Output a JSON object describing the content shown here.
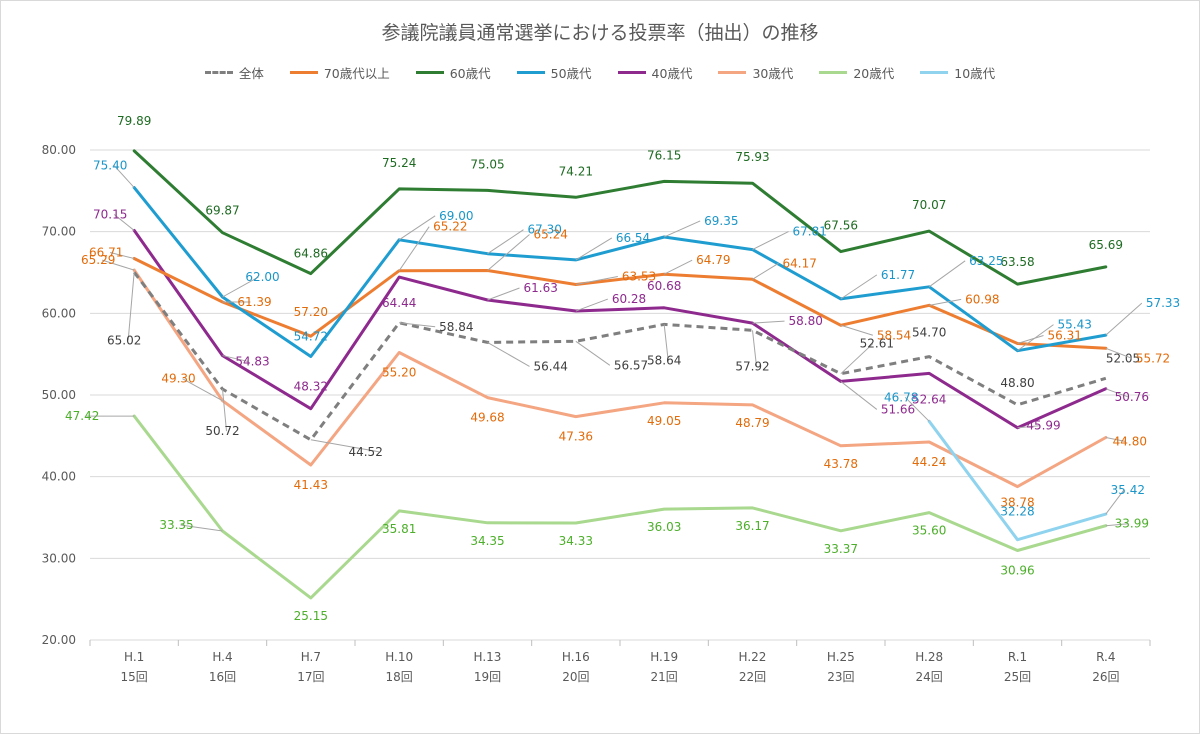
{
  "chart_data": {
    "type": "line",
    "title": "参議院議員通常選挙における投票率（抽出）の推移",
    "xlabel": "",
    "ylabel": "",
    "ylim": [
      20,
      80
    ],
    "yticks": [
      "20.00",
      "30.00",
      "40.00",
      "50.00",
      "60.00",
      "70.00",
      "80.00"
    ],
    "grid": "horizontal",
    "legend_position": "top",
    "categories": [
      "H.1",
      "H.4",
      "H.7",
      "H.10",
      "H.13",
      "H.16",
      "H.19",
      "H.22",
      "H.25",
      "H.28",
      "R.1",
      "R.4"
    ],
    "categories_sub": [
      "15回",
      "16回",
      "17回",
      "18回",
      "19回",
      "20回",
      "21回",
      "22回",
      "23回",
      "24回",
      "25回",
      "26回"
    ],
    "series": [
      {
        "name": "全体",
        "color": "#7f7f7f",
        "label_color": "#404040",
        "dashed": true,
        "values": [
          65.02,
          50.72,
          44.52,
          58.84,
          56.44,
          56.57,
          58.64,
          57.92,
          52.61,
          54.7,
          48.8,
          52.05
        ],
        "labels": [
          "65.02",
          "50.72",
          "44.52",
          "58.84",
          "56.44",
          "56.57",
          "58.64",
          "57.92",
          "52.61",
          "54.70",
          "48.80",
          "52.05"
        ]
      },
      {
        "name": "70歳代以上",
        "color": "#ed7d31",
        "label_color": "#e26b0a",
        "dashed": false,
        "values": [
          66.71,
          61.39,
          57.2,
          65.22,
          65.24,
          63.53,
          64.79,
          64.17,
          58.54,
          60.98,
          56.31,
          55.72
        ],
        "labels": [
          "66.71",
          "61.39",
          "57.20",
          "65.22",
          "65.24",
          "63.53",
          "64.79",
          "64.17",
          "58.54",
          "60.98",
          "56.31",
          "55.72"
        ]
      },
      {
        "name": "60歳代",
        "color": "#2e7d32",
        "label_color": "#1e6b22",
        "dashed": false,
        "values": [
          79.89,
          69.87,
          64.86,
          75.24,
          75.05,
          74.21,
          76.15,
          75.93,
          67.56,
          70.07,
          63.58,
          65.69
        ],
        "labels": [
          "79.89",
          "69.87",
          "64.86",
          "75.24",
          "75.05",
          "74.21",
          "76.15",
          "75.93",
          "67.56",
          "70.07",
          "63.58",
          "65.69"
        ]
      },
      {
        "name": "50歳代",
        "color": "#1f9dd0",
        "label_color": "#1b96c9",
        "dashed": false,
        "values": [
          75.4,
          62.0,
          54.72,
          69.0,
          67.3,
          66.54,
          69.35,
          67.81,
          61.77,
          63.25,
          55.43,
          57.33
        ],
        "labels": [
          "75.40",
          "62.00",
          "54.72",
          "69.00",
          "67.30",
          "66.54",
          "69.35",
          "67.81",
          "61.77",
          "63.25",
          "55.43",
          "57.33"
        ]
      },
      {
        "name": "40歳代",
        "color": "#8e2a8e",
        "label_color": "#8e2a8e",
        "dashed": false,
        "values": [
          70.15,
          54.83,
          48.32,
          64.44,
          61.63,
          60.28,
          60.68,
          58.8,
          51.66,
          52.64,
          45.99,
          50.76
        ],
        "labels": [
          "70.15",
          "54.83",
          "48.32",
          "64.44",
          "61.63",
          "60.28",
          "60.68",
          "58.80",
          "51.66",
          "52.64",
          "45.99",
          "50.76"
        ]
      },
      {
        "name": "30歳代",
        "color": "#f4a582",
        "label_color": "#e26b0a",
        "dashed": false,
        "values": [
          65.29,
          49.3,
          41.43,
          55.2,
          49.68,
          47.36,
          49.05,
          48.79,
          43.78,
          44.24,
          38.78,
          44.8
        ],
        "labels": [
          "65.29",
          "49.30",
          "41.43",
          "55.20",
          "49.68",
          "47.36",
          "49.05",
          "48.79",
          "43.78",
          "44.24",
          "38.78",
          "44.80"
        ]
      },
      {
        "name": "20歳代",
        "color": "#a9d88f",
        "label_color": "#4caf2a",
        "dashed": false,
        "values": [
          47.42,
          33.35,
          25.15,
          35.81,
          34.35,
          34.33,
          36.03,
          36.17,
          33.37,
          35.6,
          30.96,
          33.99
        ],
        "labels": [
          "47.42",
          "33.35",
          "25.15",
          "35.81",
          "34.35",
          "34.33",
          "36.03",
          "36.17",
          "33.37",
          "35.60",
          "30.96",
          "33.99"
        ]
      },
      {
        "name": "10歳代",
        "color": "#8fd3ee",
        "label_color": "#1b96c9",
        "dashed": false,
        "values": [
          null,
          null,
          null,
          null,
          null,
          null,
          null,
          null,
          null,
          46.78,
          32.28,
          35.42
        ],
        "labels": [
          null,
          null,
          null,
          null,
          null,
          null,
          null,
          null,
          null,
          "46.78",
          "32.28",
          "35.42"
        ]
      }
    ]
  }
}
